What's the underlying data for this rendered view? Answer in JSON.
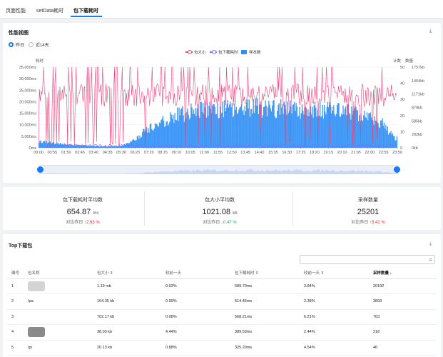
{
  "tabs": [
    "页面性能",
    "setData耗时",
    "包下载耗时"
  ],
  "perf": {
    "title": "性能视图",
    "range_options": [
      "昨日",
      "近14天"
    ],
    "legend": [
      "包大小",
      "包下载耗时",
      "样本数"
    ],
    "left_axis_title": "耗时",
    "right_axis_title_1": "计数",
    "right_axis_title_2": "数量",
    "left_ticks": [
      "35,000ms",
      "30,000ms",
      "25,000ms",
      "20,000ms",
      "15,000ms",
      "10,000ms",
      "5,000ms",
      "0ms"
    ],
    "count_ticks": [
      "50",
      "40",
      "30",
      "20",
      "10",
      "0"
    ],
    "size_ticks": [
      "1757kb",
      "1464kb",
      "1171kb",
      "878kb",
      "585kb",
      "292kb",
      "0kb"
    ],
    "x_ticks": [
      "00:00",
      "00:55",
      "01:50",
      "02:45",
      "03:40",
      "04:35",
      "05:30",
      "06:25",
      "07:20",
      "08:15",
      "09:10",
      "10:05",
      "11:00",
      "11:55",
      "12:50",
      "13:45",
      "14:40",
      "15:35",
      "16:30",
      "17:25",
      "18:20",
      "19:15",
      "20:10",
      "21:05",
      "22:00",
      "22:55",
      "23:50"
    ]
  },
  "chart_data": {
    "type": "line",
    "x_range": [
      "00:00",
      "23:59"
    ],
    "series": [
      {
        "name": "包大小",
        "color": "#e8457a",
        "axis": "size",
        "unit": "kb",
        "approx_level": [
          900,
          1400
        ]
      },
      {
        "name": "包下载耗时",
        "color": "#7c6cf2",
        "axis": "time",
        "unit": "ms",
        "approx_level": [
          0,
          1500
        ]
      },
      {
        "name": "样本数",
        "color": "#2f8ff5",
        "axis": "count",
        "type": "bar",
        "profile_x": [
          "00:00",
          "02:00",
          "04:00",
          "05:30",
          "06:25",
          "07:20",
          "09:10",
          "11:00",
          "13:45",
          "16:30",
          "19:15",
          "21:05",
          "22:55",
          "23:50"
        ],
        "profile_y": [
          4,
          2,
          1,
          1,
          5,
          12,
          20,
          24,
          25,
          24,
          23,
          22,
          16,
          6
        ]
      }
    ],
    "ylim_time": [
      0,
      35000
    ],
    "ylim_count": [
      0,
      50
    ],
    "ylim_size": [
      0,
      1757
    ]
  },
  "stats": [
    {
      "title": "包下载耗时平均数",
      "value": "654.87",
      "unit": "ms",
      "compare": "对比昨日",
      "change": "2.93 %",
      "dir": "up"
    },
    {
      "title": "包大小平均数",
      "value": "1021.08",
      "unit": "kb",
      "compare": "对比昨日",
      "change": "0.47 %",
      "dir": "down"
    },
    {
      "title": "采样数量",
      "value": "25201",
      "unit": "",
      "compare": "对比昨日",
      "change": "5.41 %",
      "dir": "up"
    }
  ],
  "top": {
    "title": "Top下载包",
    "search_placeholder": "",
    "columns": [
      "编号",
      "包名称",
      "包大小",
      "较前一天",
      "包下载耗时",
      "较前一天",
      "采样数量"
    ],
    "rows": [
      [
        "1",
        "",
        "1.19 mb",
        "0.03%",
        "689.70ms",
        "3.84%",
        "20192"
      ],
      [
        "2",
        "/pa",
        "164.35 kb",
        "0.99%",
        "514.45ms",
        "2.38%",
        "3893"
      ],
      [
        "3",
        "",
        "702.17 kb",
        "0.08%",
        "568.21ms",
        "6.21%",
        "763"
      ],
      [
        "4",
        "",
        "38.03 kb",
        "4.44%",
        "389.53ms",
        "2.44%",
        "218"
      ],
      [
        "5",
        "/pi",
        "20.13 kb",
        "0.88%",
        "325.20ms",
        "4.54%",
        "46"
      ]
    ]
  }
}
